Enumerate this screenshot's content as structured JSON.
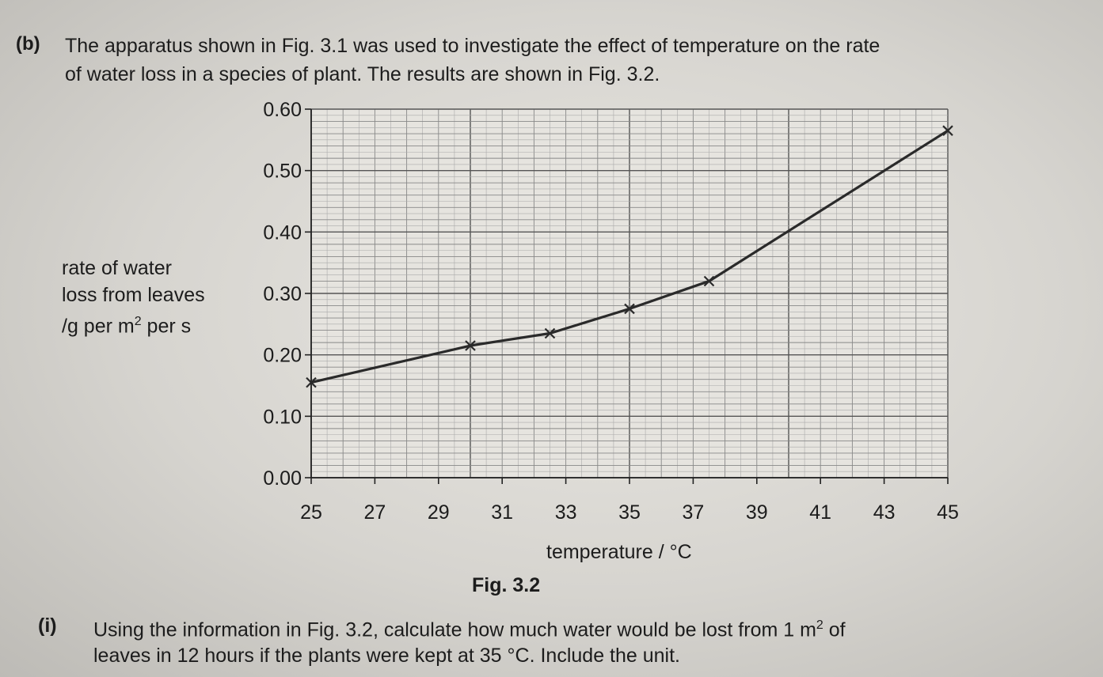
{
  "question": {
    "label": "(b)",
    "intro_line1": "The apparatus shown in Fig. 3.1 was used to investigate the effect of temperature on the rate",
    "intro_line2": "of water loss in a species of plant. The results are shown in Fig. 3.2.",
    "ylabel_line1": "rate of water",
    "ylabel_line2": "loss from leaves",
    "ylabel_line3_pre": "/g per m",
    "ylabel_line3_sup": "2",
    "ylabel_line3_post": " per s",
    "xlabel": "temperature / °C",
    "fig_caption": "Fig. 3.2",
    "sub_label": "(i)",
    "sub_text_line1": "Using the information in Fig. 3.2, calculate how much water would be lost from 1 m",
    "sub_text_sup": "2",
    "sub_text_line1_end": " of",
    "sub_text_line2": "leaves in 12 hours if the plants were kept at 35 °C. Include the unit."
  },
  "chart_data": {
    "type": "line",
    "title": "",
    "xlabel": "temperature / °C",
    "ylabel": "rate of water loss from leaves / g per m2 per s",
    "xlim": [
      25,
      45
    ],
    "ylim": [
      0.0,
      0.6
    ],
    "x_ticks": [
      "25",
      "27",
      "29",
      "31",
      "33",
      "35",
      "37",
      "39",
      "41",
      "43",
      "45"
    ],
    "y_ticks": [
      "0.00",
      "0.10",
      "0.20",
      "0.30",
      "0.40",
      "0.50",
      "0.60"
    ],
    "grid": true,
    "series": [
      {
        "name": "",
        "color": "#2a2a2a",
        "marker": "x",
        "x": [
          25,
          30,
          32.5,
          35,
          37.5,
          45
        ],
        "y": [
          0.155,
          0.215,
          0.235,
          0.275,
          0.32,
          0.565
        ]
      }
    ]
  }
}
